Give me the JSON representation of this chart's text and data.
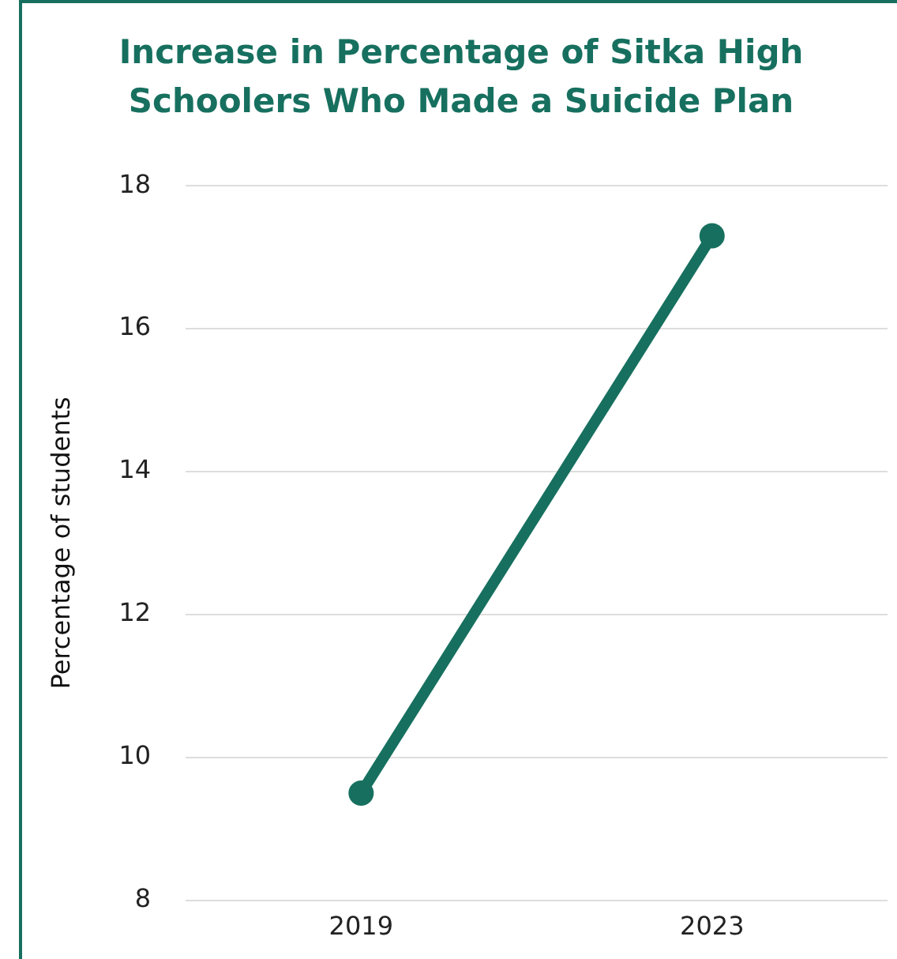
{
  "chart_data": {
    "type": "line",
    "title": "Increase in Percentage of Sitka High Schoolers Who Made a Suicide Plan",
    "ylabel": "Percentage of students",
    "categories": [
      "2019",
      "2023"
    ],
    "series": [
      {
        "color": "#17705f",
        "values": [
          9.5,
          17.3
        ]
      }
    ],
    "ylim": [
      8,
      18
    ],
    "yticks": [
      8,
      10,
      12,
      14,
      16,
      18
    ],
    "grid": "y",
    "legend": false,
    "marker": "circle",
    "line_style": "solid"
  }
}
